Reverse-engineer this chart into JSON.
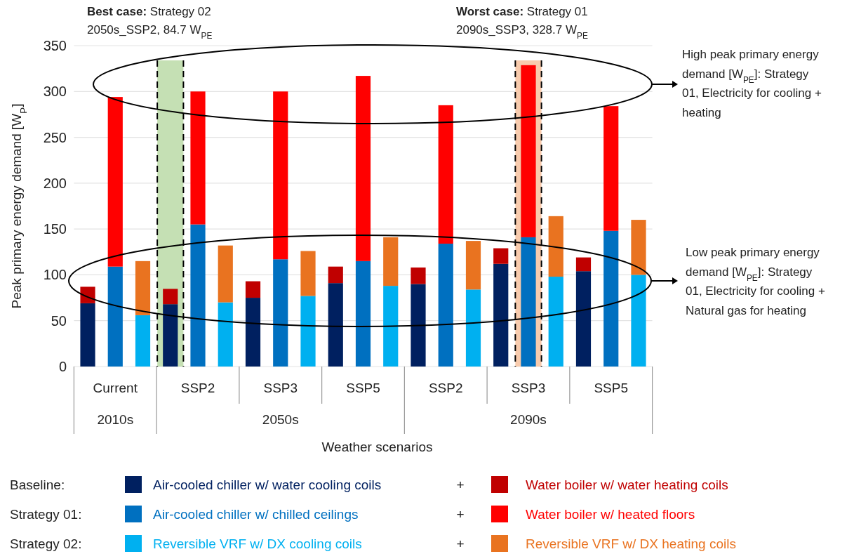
{
  "chart_data": {
    "type": "bar",
    "stacked": true,
    "ylabel": "Peak primary energy demand [W$_{P}$]",
    "xlabel": "Weather scenarios",
    "categories": [
      null,
      "Current",
      null,
      null,
      "SSP2",
      null,
      null,
      "SSP3",
      null,
      null,
      "SSP5",
      null,
      null,
      "SSP2",
      null,
      null,
      "SSP3",
      null,
      null,
      "SSP5",
      null
    ],
    "series": [
      {
        "name": "Air-cooled chiller w/ water cooling coils",
        "color": "#002060",
        "values": [
          69,
          null,
          null,
          68,
          null,
          null,
          75,
          null,
          null,
          91,
          null,
          null,
          90,
          null,
          null,
          112,
          null,
          null,
          104,
          null,
          null
        ]
      },
      {
        "name": "Water boiler w/ water heating coils",
        "color": "#c00000",
        "values": [
          18,
          null,
          null,
          16.7,
          null,
          null,
          18,
          null,
          null,
          18,
          null,
          null,
          18,
          null,
          null,
          17,
          null,
          null,
          15,
          null,
          null
        ]
      },
      {
        "name": "Air-cooled chiller w/ chilled ceilings",
        "color": "#0070c0",
        "values": [
          null,
          109,
          null,
          null,
          155,
          null,
          null,
          117,
          null,
          null,
          115,
          null,
          null,
          134,
          null,
          null,
          141,
          null,
          null,
          148,
          null
        ]
      },
      {
        "name": "Water boiler w/ heated floors",
        "color": "#ff0000",
        "values": [
          null,
          185,
          null,
          null,
          145,
          null,
          null,
          183,
          null,
          null,
          202,
          null,
          null,
          151,
          null,
          null,
          187.7,
          null,
          null,
          136,
          null
        ]
      },
      {
        "name": "Reversible VRF w/ DX cooling coils",
        "color": "#00b0f0",
        "values": [
          null,
          null,
          56,
          null,
          null,
          70,
          null,
          null,
          77,
          null,
          null,
          88,
          null,
          null,
          84,
          null,
          null,
          98,
          null,
          null,
          100
        ]
      },
      {
        "name": "Reversible VRF w/ DX heating coils",
        "color": "#e97320",
        "values": [
          null,
          null,
          59,
          null,
          null,
          62,
          null,
          null,
          49,
          null,
          null,
          53,
          null,
          null,
          53,
          null,
          null,
          66,
          null,
          null,
          60
        ]
      }
    ],
    "ylim": [
      0,
      350
    ],
    "yticks": [
      0,
      50,
      100,
      150,
      200,
      250,
      300,
      350
    ],
    "grid": "y",
    "legend": "bottom",
    "annotations": [
      "Best case:",
      "Strategy 02",
      "2050s_SSP2, 84.7 W$_{PE}$",
      "Worst case:",
      "Strategy 01",
      "2090s_SSP3, 328.7 W$_{PE}$",
      "High peak primary energy\ndemand [W$_{PE}$]: Strategy\n01, Electricity for cooling +\nheating",
      "Low peak primary energy\ndemand [W$_{PE}$]: Strategy\n01, Electricity for cooling +\nNatural gas for heating",
      "2010s",
      "2050s",
      "2090s",
      "Baseline:",
      "Strategy 01:",
      "Strategy 02:",
      "+",
      "+",
      "+"
    ]
  }
}
